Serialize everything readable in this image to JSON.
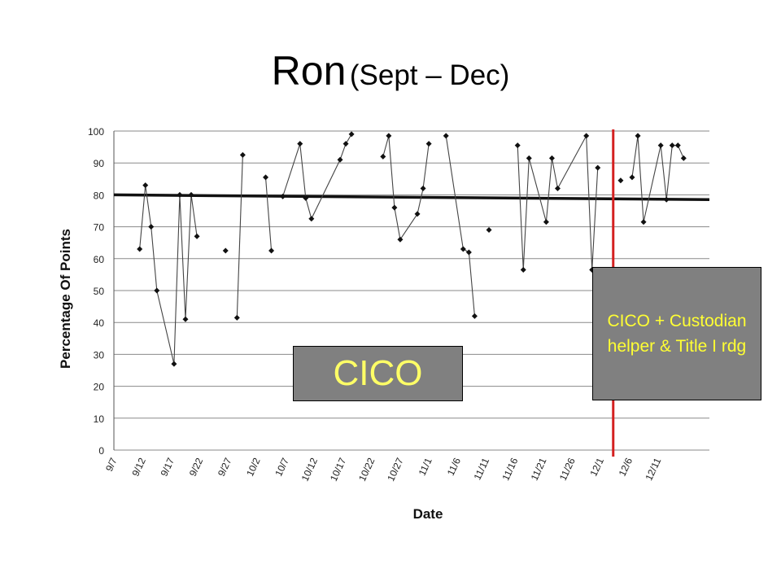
{
  "title": {
    "main": "Ron",
    "sub": "(Sept – Dec)"
  },
  "callouts": {
    "cico": "CICO",
    "cico_plus": "CICO + Custodian helper & Title I rdg"
  },
  "colors": {
    "phase_line": "#d42020",
    "callout_bg": "#808080",
    "callout_text": "#ffff33",
    "data": "#333333"
  },
  "chart_data": {
    "type": "line",
    "ylabel": "Percentage Of Points",
    "xlabel": "Date",
    "ylim": [
      0,
      100
    ],
    "yticks": [
      0,
      10,
      20,
      30,
      40,
      50,
      60,
      70,
      80,
      90,
      100
    ],
    "grid": true,
    "x_unit": "day of school calendar (Sept 7 = 0)",
    "xlim": [
      0,
      104
    ],
    "xtick_labels": [
      "9/7",
      "9/12",
      "9/17",
      "9/22",
      "9/27",
      "10/2",
      "10/7",
      "10/12",
      "10/17",
      "10/22",
      "10/27",
      "11/1",
      "11/6",
      "11/11",
      "11/16",
      "11/21",
      "11/26",
      "12/1",
      "12/6",
      "12/11"
    ],
    "goal_line": {
      "y_start": 80,
      "y_end": 78.5
    },
    "phase_change_x": 87.2,
    "segments": [
      [
        [
          4.5,
          63
        ],
        [
          5.5,
          83
        ],
        [
          6.5,
          70
        ],
        [
          7.5,
          50
        ],
        [
          10.5,
          27
        ],
        [
          11.5,
          80
        ],
        [
          12.5,
          41
        ],
        [
          13.5,
          80
        ],
        [
          14.5,
          67
        ]
      ],
      [
        [
          19.5,
          62.5
        ]
      ],
      [
        [
          21.5,
          41.5
        ],
        [
          22.5,
          92.5
        ]
      ],
      [
        [
          26.5,
          85.5
        ],
        [
          27.5,
          62.5
        ]
      ],
      [
        [
          29.5,
          79.5
        ],
        [
          32.5,
          96
        ],
        [
          33.5,
          79
        ],
        [
          34.5,
          72.5
        ],
        [
          39.5,
          91
        ],
        [
          40.5,
          96
        ],
        [
          41.5,
          99
        ]
      ],
      [
        [
          47,
          92
        ],
        [
          48,
          98.5
        ],
        [
          49,
          76
        ],
        [
          50,
          66
        ],
        [
          53,
          74
        ],
        [
          54,
          82
        ],
        [
          55,
          96
        ]
      ],
      [
        [
          58,
          98.5
        ],
        [
          61,
          63
        ],
        [
          62,
          62
        ],
        [
          63,
          42
        ]
      ],
      [
        [
          65.5,
          69
        ]
      ],
      [
        [
          70.5,
          95.5
        ],
        [
          71.5,
          56.5
        ],
        [
          72.5,
          91.5
        ],
        [
          75.5,
          71.5
        ],
        [
          76.5,
          91.5
        ],
        [
          77.5,
          82
        ],
        [
          82.5,
          98.5
        ],
        [
          83.5,
          56.5
        ],
        [
          84.5,
          88.5
        ]
      ],
      [
        [
          88.5,
          84.5
        ]
      ],
      [
        [
          90.5,
          85.5
        ],
        [
          91.5,
          98.5
        ],
        [
          92.5,
          71.5
        ],
        [
          95.5,
          95.5
        ],
        [
          96.5,
          78.5
        ],
        [
          97.5,
          95.5
        ],
        [
          98.5,
          95.5
        ],
        [
          99.5,
          91.5
        ]
      ]
    ]
  }
}
